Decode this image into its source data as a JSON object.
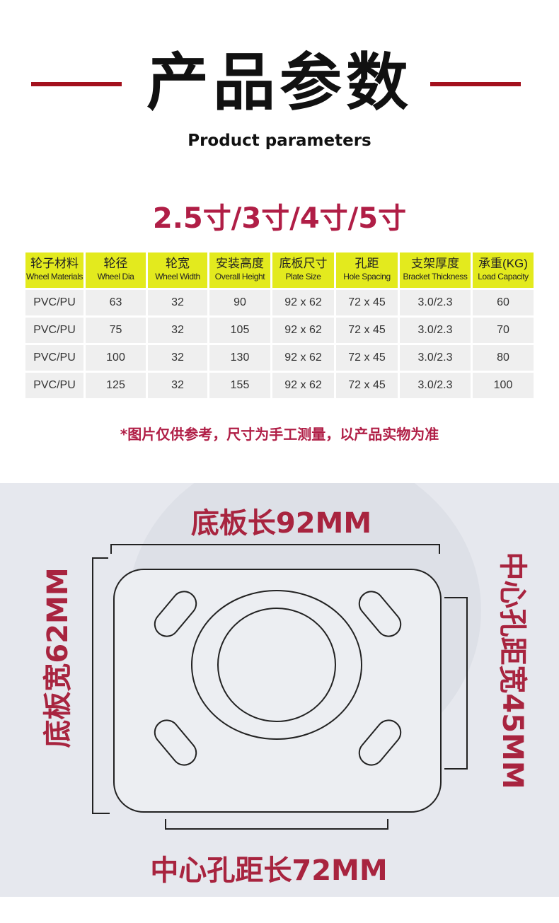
{
  "header": {
    "title": "产品参数",
    "subtitle": "Product parameters",
    "accent_color": "#a3111d"
  },
  "sizes": "2.5寸/3寸/4寸/5寸",
  "table": {
    "columns": [
      {
        "cn": "轮子材料",
        "en": "Wheel Materials"
      },
      {
        "cn": "轮径",
        "en": "Wheel Dia"
      },
      {
        "cn": "轮宽",
        "en": "Wheel Width"
      },
      {
        "cn": "安装高度",
        "en": "Overall Height"
      },
      {
        "cn": "底板尺寸",
        "en": "Plate Size"
      },
      {
        "cn": "孔距",
        "en": "Hole Spacing"
      },
      {
        "cn": "支架厚度",
        "en": "Bracket Thickness"
      },
      {
        "cn": "承重(KG)",
        "en": "Load Capacity"
      }
    ],
    "rows": [
      [
        "PVC/PU",
        "63",
        "32",
        "90",
        "92 x 62",
        "72 x 45",
        "3.0/2.3",
        "60"
      ],
      [
        "PVC/PU",
        "75",
        "32",
        "105",
        "92 x 62",
        "72 x 45",
        "3.0/2.3",
        "70"
      ],
      [
        "PVC/PU",
        "100",
        "32",
        "130",
        "92 x 62",
        "72 x 45",
        "3.0/2.3",
        "80"
      ],
      [
        "PVC/PU",
        "125",
        "32",
        "155",
        "92 x 62",
        "72 x 45",
        "3.0/2.3",
        "100"
      ]
    ]
  },
  "note": "*图片仅供参考，尺寸为手工测量，以产品实物为准",
  "diagram": {
    "plate_length": "底板长92MM",
    "plate_width": "底板宽62MM",
    "hole_width": "中心孔距宽45MM",
    "hole_length": "中心孔距长72MM"
  }
}
